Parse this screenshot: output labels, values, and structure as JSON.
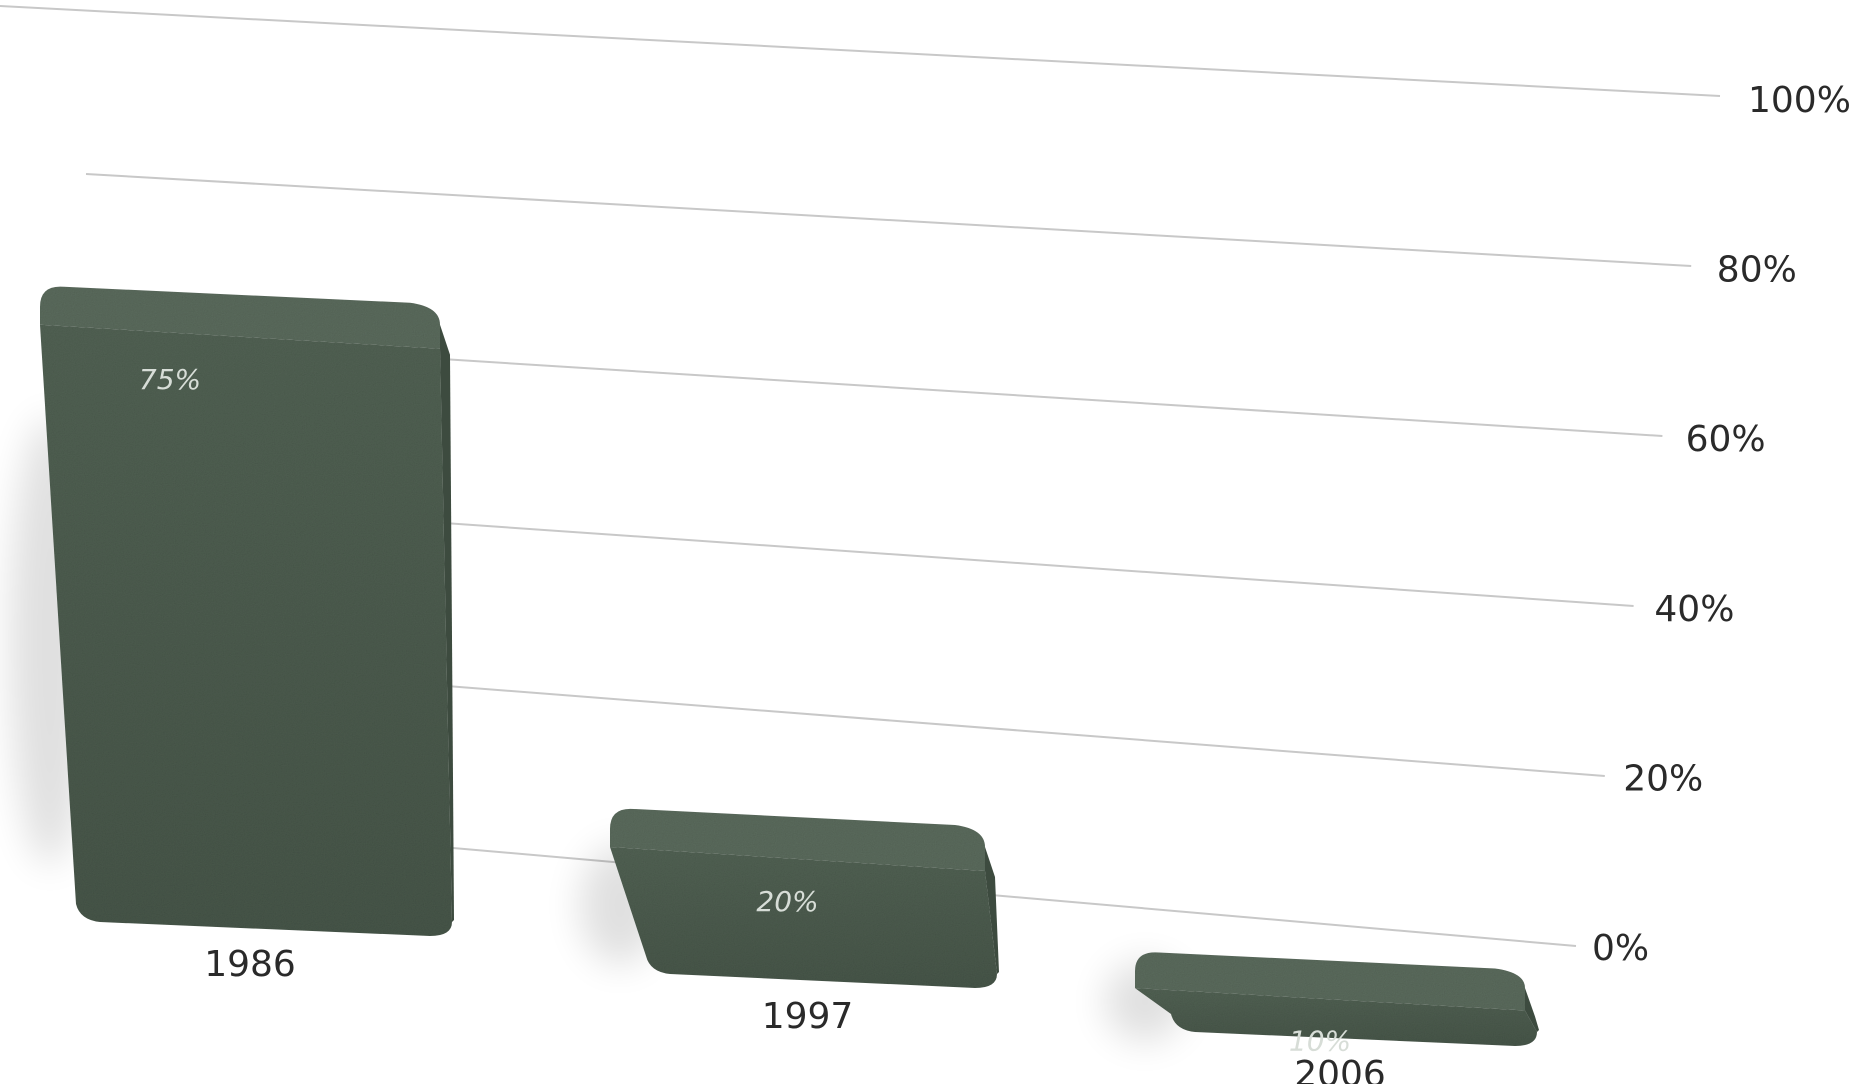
{
  "chart_data": {
    "type": "bar",
    "categories": [
      "1986",
      "1997",
      "2006"
    ],
    "values": [
      75,
      20,
      10
    ],
    "value_labels": [
      "75%",
      "20%",
      "10%"
    ],
    "y_ticks": [
      {
        "value": 0,
        "label": "0%"
      },
      {
        "value": 20,
        "label": "20%"
      },
      {
        "value": 40,
        "label": "40%"
      },
      {
        "value": 60,
        "label": "60%"
      },
      {
        "value": 80,
        "label": "80%"
      },
      {
        "value": 100,
        "label": "100%"
      }
    ],
    "ylim": [
      0,
      100
    ],
    "title": "",
    "xlabel": "",
    "ylabel": "",
    "grid": true,
    "legend": "none",
    "style": "3d-perspective-stone"
  },
  "colors": {
    "bar_front": "#4a5a4c",
    "bar_side": "#3d4b3f",
    "bar_top": "#5a6a5c",
    "grid": "#c8c8c8",
    "text": "#2a2a2a",
    "value_text": "#d7ddd7"
  }
}
